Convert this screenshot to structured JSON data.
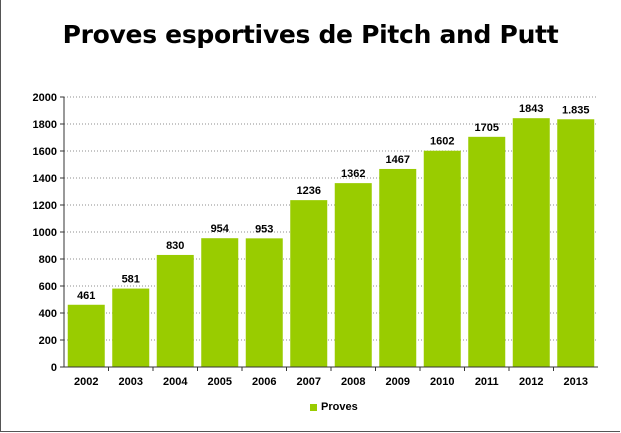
{
  "chart_data": {
    "type": "bar",
    "title": "Proves esportives de Pitch and Putt",
    "categories": [
      "2002",
      "2003",
      "2004",
      "2005",
      "2006",
      "2007",
      "2008",
      "2009",
      "2010",
      "2011",
      "2012",
      "2013"
    ],
    "series": [
      {
        "name": "Proves",
        "values": [
          461,
          581,
          830,
          954,
          953,
          1236,
          1362,
          1467,
          1602,
          1705,
          1843,
          1835
        ],
        "labels": [
          "461",
          "581",
          "830",
          "954",
          "953",
          "1236",
          "1362",
          "1467",
          "1602",
          "1705",
          "1843",
          "1.835"
        ]
      }
    ],
    "xlabel": "",
    "ylabel": "",
    "ylim": [
      0,
      2000
    ],
    "yticks": [
      "0",
      "200",
      "400",
      "600",
      "800",
      "1000",
      "1200",
      "1400",
      "1600",
      "1800",
      "2000"
    ],
    "grid": true,
    "legend_position": "bottom",
    "colors": {
      "bar": "#99cc00",
      "grid": "#8c8c8c",
      "axis": "#333333"
    }
  }
}
